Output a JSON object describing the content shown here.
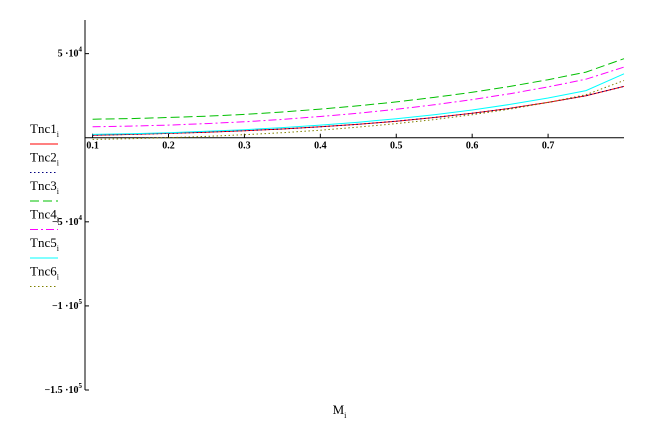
{
  "chart_data": {
    "type": "line",
    "xlabel": "M",
    "xlabel_sub": "i",
    "x": [
      0.1,
      0.15,
      0.2,
      0.25,
      0.3,
      0.35,
      0.4,
      0.45,
      0.5,
      0.55,
      0.6,
      0.65,
      0.7,
      0.75,
      0.8
    ],
    "xlim": [
      0.09,
      0.8
    ],
    "ylim": [
      -150000,
      70000
    ],
    "x_ticks": [
      {
        "value": 0.1,
        "label": "0.1"
      },
      {
        "value": 0.2,
        "label": "0.2"
      },
      {
        "value": 0.3,
        "label": "0.3"
      },
      {
        "value": 0.4,
        "label": "0.4"
      },
      {
        "value": 0.5,
        "label": "0.5"
      },
      {
        "value": 0.6,
        "label": "0.6"
      },
      {
        "value": 0.7,
        "label": "0.7"
      }
    ],
    "y_ticks": [
      {
        "value": 50000,
        "mantissa": "5 ·10",
        "exp": "4"
      },
      {
        "value": -50000,
        "mantissa": "−5 ·10",
        "exp": "4"
      },
      {
        "value": -100000,
        "mantissa": "−1 ·10",
        "exp": "5"
      },
      {
        "value": -150000,
        "mantissa": "−1.5 ·10",
        "exp": "5"
      }
    ],
    "grid": false,
    "legend_position": "left",
    "series": [
      {
        "name": "Tnc1",
        "sub": "i",
        "color": "#ff0000",
        "dash": "",
        "values": [
          1500,
          2000,
          2600,
          3300,
          4200,
          5200,
          6500,
          8000,
          9800,
          12000,
          14500,
          17500,
          21000,
          25000,
          30500
        ]
      },
      {
        "name": "Tnc2",
        "sub": "i",
        "color": "#000080",
        "dash": "1.5,2.5",
        "values": [
          1500,
          2000,
          2600,
          3300,
          4200,
          5200,
          6500,
          8000,
          9800,
          12000,
          14500,
          17500,
          21000,
          25000,
          30500
        ]
      },
      {
        "name": "Tnc3",
        "sub": "i",
        "color": "#00c000",
        "dash": "9,4",
        "values": [
          11000,
          11400,
          12000,
          12800,
          13900,
          15300,
          17000,
          19000,
          21300,
          24000,
          27000,
          30500,
          34500,
          39000,
          47000
        ]
      },
      {
        "name": "Tnc4",
        "sub": "i",
        "color": "#ff00ff",
        "dash": "8,3,2,3",
        "values": [
          6500,
          6900,
          7500,
          8400,
          9500,
          10900,
          12600,
          14600,
          16900,
          19600,
          22700,
          26200,
          30200,
          34800,
          42000
        ]
      },
      {
        "name": "Tnc5",
        "sub": "i",
        "color": "#00ffff",
        "dash": "",
        "values": [
          2000,
          2400,
          3000,
          3800,
          4800,
          6000,
          7500,
          9200,
          11300,
          13700,
          16500,
          19800,
          23600,
          28000,
          38000
        ]
      },
      {
        "name": "Tnc6",
        "sub": "i",
        "color": "#808000",
        "dash": "1.5,2.5",
        "values": [
          -1000,
          -600,
          0,
          800,
          1800,
          3000,
          4500,
          6300,
          8400,
          10800,
          13700,
          17000,
          21000,
          25600,
          34000
        ]
      }
    ]
  }
}
